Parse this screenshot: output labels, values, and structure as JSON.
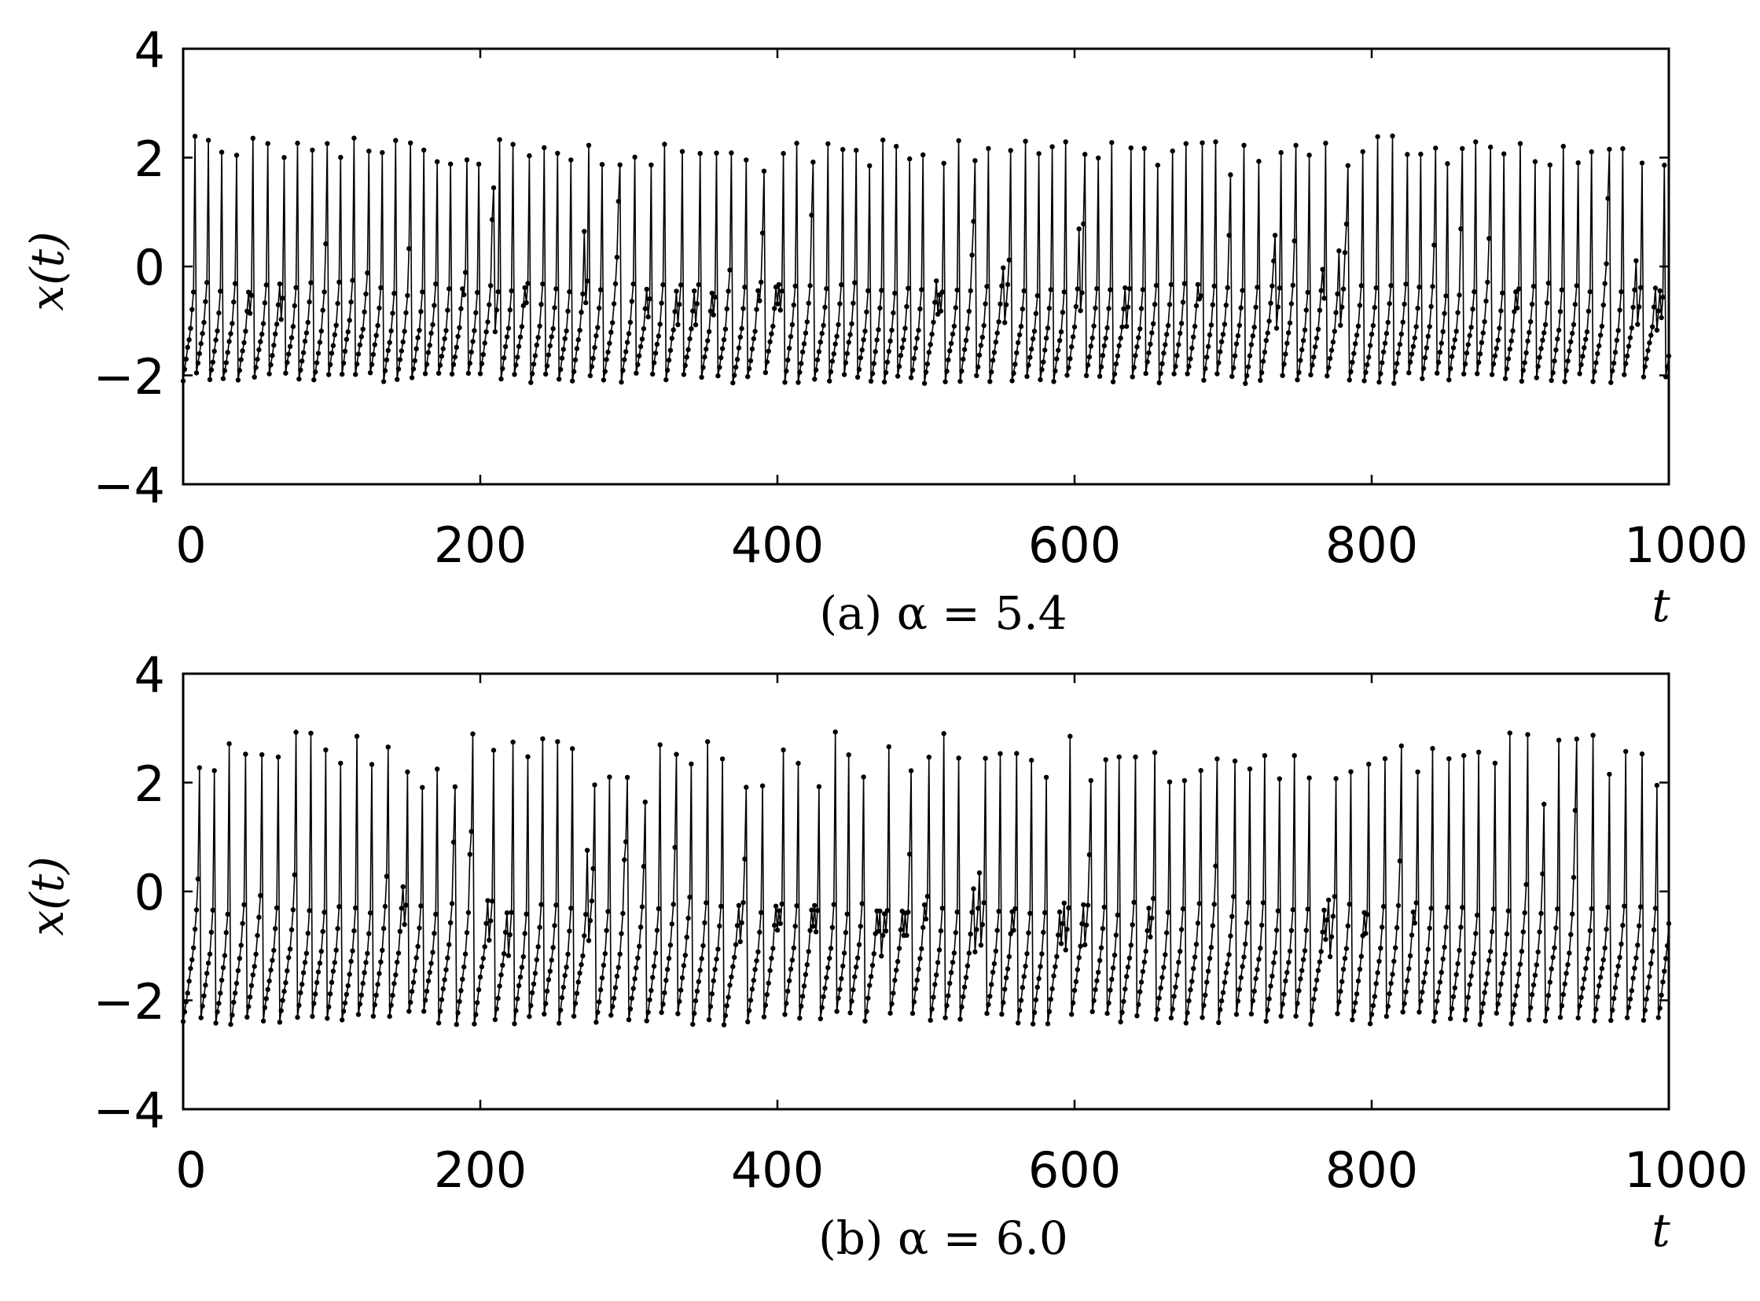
{
  "chart_data": [
    {
      "type": "line",
      "caption": "(a) α = 5.4",
      "xlabel": "t",
      "ylabel": "x(t)",
      "xlim": [
        0,
        1000
      ],
      "ylim": [
        -4,
        4
      ],
      "x_ticks": [
        "0",
        "200",
        "400",
        "600",
        "800",
        "1000"
      ],
      "y_ticks": [
        "4",
        "2",
        "0",
        "−2",
        "−4"
      ],
      "markers": true,
      "grid": false,
      "seed": 7,
      "params": {
        "base_min": -2.15,
        "base_max": -1.95,
        "slope": 0.17,
        "peak_min": 1.85,
        "peak_max": 2.4,
        "threshold": -0.6
      },
      "series": [
        {
          "x": [],
          "y": []
        }
      ]
    },
    {
      "type": "line",
      "caption": "(b) α = 6.0",
      "xlabel": "t",
      "ylabel": "x(t)",
      "xlim": [
        0,
        1000
      ],
      "ylim": [
        -4,
        4
      ],
      "x_ticks": [
        "0",
        "200",
        "400",
        "600",
        "800",
        "1000"
      ],
      "y_ticks": [
        "4",
        "2",
        "0",
        "−2",
        "−4"
      ],
      "markers": true,
      "grid": false,
      "seed": 11,
      "params": {
        "base_min": -2.45,
        "base_max": -2.2,
        "slope": 0.19,
        "peak_min": 1.9,
        "peak_max": 2.95,
        "threshold": -0.45
      },
      "series": [
        {
          "x": [],
          "y": []
        }
      ]
    }
  ]
}
